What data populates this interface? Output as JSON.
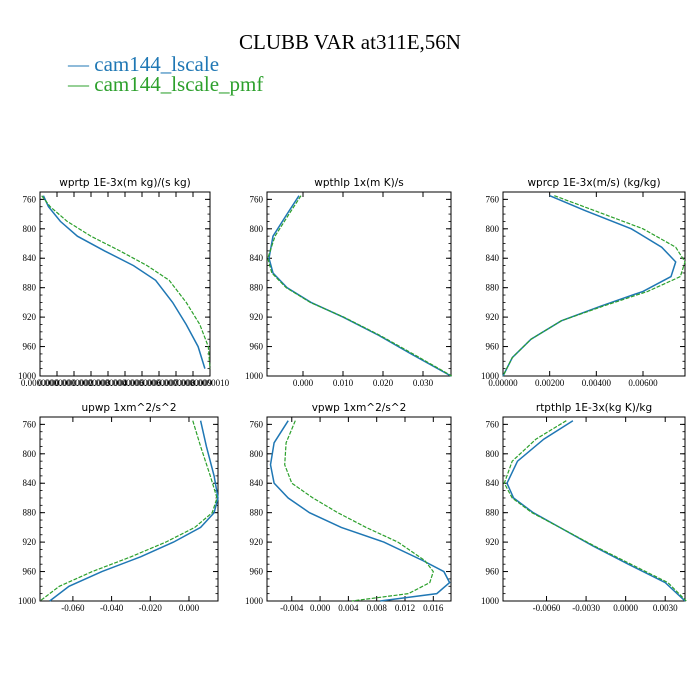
{
  "title": "CLUBB VAR at311E,56N",
  "legend": [
    {
      "name": "cam144_lscale",
      "color": "#1f77b4"
    },
    {
      "name": "cam144_lscale_pmf",
      "color": "#2ca02c"
    }
  ],
  "chart_data": [
    {
      "type": "line",
      "title": "wprtp  1E-3x(m kg)/(s kg)",
      "ylim": [
        1000,
        750
      ],
      "yticks": [
        760,
        800,
        840,
        880,
        920,
        960,
        1000
      ],
      "xlim": [
        0,
        1
      ],
      "xticks": [
        0,
        0.1,
        0.2,
        0.3,
        0.4,
        0.5,
        0.6,
        0.7,
        0.8,
        0.9,
        1.0
      ],
      "xtick_labels": [
        "0.0000000",
        "0.0000001",
        "0.0000002",
        "0.0000003",
        "0.0000004",
        "0.0000005",
        "0.0000006",
        "0.0000007",
        "0.0000008",
        "0.0000009",
        "0.0000010"
      ],
      "series": [
        {
          "name": "cam144_lscale",
          "color": "#1f77b4",
          "dash": false,
          "x": [
            0.02,
            0.05,
            0.12,
            0.22,
            0.38,
            0.55,
            0.68,
            0.78,
            0.86,
            0.93,
            0.97
          ],
          "y": [
            755,
            770,
            790,
            810,
            830,
            850,
            870,
            900,
            930,
            960,
            990
          ]
        },
        {
          "name": "cam144_lscale_pmf",
          "color": "#2ca02c",
          "dash": true,
          "x": [
            0.01,
            0.06,
            0.16,
            0.3,
            0.47,
            0.63,
            0.76,
            0.86,
            0.94,
            0.99,
            1.0
          ],
          "y": [
            755,
            770,
            790,
            810,
            830,
            850,
            870,
            900,
            930,
            960,
            990
          ]
        }
      ]
    },
    {
      "type": "line",
      "title": "wpthlp  1x(m K)/s",
      "ylim": [
        1000,
        750
      ],
      "yticks": [
        760,
        800,
        840,
        880,
        920,
        960,
        1000
      ],
      "xlim": [
        -0.009,
        0.037
      ],
      "xticks": [
        0.0,
        0.01,
        0.02,
        0.03
      ],
      "xtick_labels": [
        "0.000",
        "0.010",
        "0.020",
        "0.030"
      ],
      "series": [
        {
          "name": "cam144_lscale",
          "color": "#1f77b4",
          "dash": false,
          "x": [
            -0.001,
            -0.004,
            -0.0075,
            -0.0085,
            -0.0075,
            -0.004,
            0.002,
            0.01,
            0.019,
            0.027,
            0.037
          ],
          "y": [
            755,
            780,
            810,
            840,
            860,
            880,
            900,
            920,
            945,
            970,
            1000
          ]
        },
        {
          "name": "cam144_lscale_pmf",
          "color": "#2ca02c",
          "dash": true,
          "x": [
            -0.0005,
            -0.0035,
            -0.007,
            -0.0088,
            -0.0078,
            -0.0042,
            0.0018,
            0.0102,
            0.0193,
            0.0275,
            0.0372
          ],
          "y": [
            755,
            780,
            810,
            840,
            860,
            880,
            900,
            920,
            945,
            970,
            1000
          ]
        }
      ]
    },
    {
      "type": "line",
      "title": "wprcp  1E-3x(m/s) (kg/kg)",
      "ylim": [
        1000,
        750
      ],
      "yticks": [
        760,
        800,
        840,
        880,
        920,
        960,
        1000
      ],
      "xlim": [
        0,
        0.0078
      ],
      "xticks": [
        0,
        0.002,
        0.004,
        0.006
      ],
      "xtick_labels": [
        "0.00000",
        "0.00200",
        "0.00400",
        "0.00600"
      ],
      "series": [
        {
          "name": "cam144_lscale",
          "color": "#1f77b4",
          "dash": false,
          "x": [
            0.002,
            0.0035,
            0.0055,
            0.0068,
            0.0074,
            0.0072,
            0.006,
            0.0042,
            0.0025,
            0.0012,
            0.0004,
            0.0
          ],
          "y": [
            755,
            775,
            800,
            825,
            845,
            865,
            885,
            905,
            925,
            950,
            975,
            1000
          ]
        },
        {
          "name": "cam144_lscale_pmf",
          "color": "#2ca02c",
          "dash": true,
          "x": [
            0.0022,
            0.0039,
            0.006,
            0.0074,
            0.0078,
            0.0076,
            0.0062,
            0.0043,
            0.0025,
            0.0012,
            0.0004,
            0.0
          ],
          "y": [
            755,
            775,
            800,
            825,
            845,
            865,
            885,
            905,
            925,
            950,
            975,
            1000
          ]
        }
      ]
    },
    {
      "type": "line",
      "title": "upwp   1xm^2/s^2",
      "ylim": [
        1000,
        750
      ],
      "yticks": [
        760,
        800,
        840,
        880,
        920,
        960,
        1000
      ],
      "xlim": [
        -0.077,
        0.015
      ],
      "xticks": [
        -0.06,
        -0.04,
        -0.02,
        0.0
      ],
      "xtick_labels": [
        "-0.060",
        "-0.040",
        "-0.020",
        "0.000"
      ],
      "series": [
        {
          "name": "cam144_lscale",
          "color": "#1f77b4",
          "dash": false,
          "x": [
            0.006,
            0.009,
            0.013,
            0.015,
            0.013,
            0.006,
            -0.008,
            -0.025,
            -0.045,
            -0.062,
            -0.072
          ],
          "y": [
            755,
            790,
            830,
            860,
            880,
            900,
            920,
            940,
            960,
            980,
            1000
          ]
        },
        {
          "name": "cam144_lscale_pmf",
          "color": "#2ca02c",
          "dash": true,
          "x": [
            0.002,
            0.006,
            0.011,
            0.0145,
            0.012,
            0.003,
            -0.012,
            -0.03,
            -0.05,
            -0.067,
            -0.077
          ],
          "y": [
            755,
            790,
            830,
            860,
            880,
            900,
            920,
            940,
            960,
            980,
            1000
          ]
        }
      ]
    },
    {
      "type": "line",
      "title": "vpwp   1xm^2/s^2",
      "ylim": [
        1000,
        750
      ],
      "yticks": [
        760,
        800,
        840,
        880,
        920,
        960,
        1000
      ],
      "xlim": [
        -0.0075,
        0.0185
      ],
      "xticks": [
        -0.004,
        0.0,
        0.004,
        0.008,
        0.012,
        0.016
      ],
      "xtick_labels": [
        "-0.004",
        "0.000",
        "0.004",
        "0.008",
        "0.012",
        "0.016"
      ],
      "series": [
        {
          "name": "cam144_lscale",
          "color": "#1f77b4",
          "dash": false,
          "x": [
            -0.0045,
            -0.0065,
            -0.007,
            -0.0065,
            -0.0045,
            -0.0015,
            0.003,
            0.009,
            0.0145,
            0.0175,
            0.0183,
            0.0165,
            0.0085
          ],
          "y": [
            755,
            785,
            815,
            840,
            860,
            880,
            900,
            920,
            945,
            960,
            975,
            990,
            1000
          ]
        },
        {
          "name": "cam144_lscale_pmf",
          "color": "#2ca02c",
          "dash": true,
          "x": [
            -0.0035,
            -0.0048,
            -0.005,
            -0.004,
            -0.001,
            0.0025,
            0.0065,
            0.011,
            0.0148,
            0.016,
            0.0155,
            0.0125,
            0.0045
          ],
          "y": [
            755,
            785,
            815,
            840,
            860,
            880,
            900,
            920,
            945,
            960,
            975,
            990,
            1000
          ]
        }
      ]
    },
    {
      "type": "line",
      "title": "rtpthlp   1E-3x(kg K)/kg",
      "ylim": [
        1000,
        750
      ],
      "yticks": [
        760,
        800,
        840,
        880,
        920,
        960,
        1000
      ],
      "xlim": [
        -0.0093,
        0.0045
      ],
      "xticks": [
        -0.006,
        -0.003,
        0.0,
        0.003
      ],
      "xtick_labels": [
        "-0.0060",
        "-0.0030",
        "0.0000",
        "0.0030"
      ],
      "series": [
        {
          "name": "cam144_lscale",
          "color": "#1f77b4",
          "dash": false,
          "x": [
            -0.004,
            -0.0062,
            -0.0082,
            -0.009,
            -0.0085,
            -0.007,
            -0.005,
            -0.0025,
            0.0002,
            0.003,
            0.0045
          ],
          "y": [
            755,
            780,
            810,
            840,
            860,
            880,
            900,
            925,
            950,
            975,
            1000
          ]
        },
        {
          "name": "cam144_lscale_pmf",
          "color": "#2ca02c",
          "dash": true,
          "x": [
            -0.0045,
            -0.0068,
            -0.0086,
            -0.0092,
            -0.0086,
            -0.0071,
            -0.005,
            -0.0024,
            0.0004,
            0.0032,
            0.0046
          ],
          "y": [
            755,
            780,
            810,
            840,
            860,
            880,
            900,
            925,
            950,
            975,
            1000
          ]
        }
      ]
    }
  ]
}
